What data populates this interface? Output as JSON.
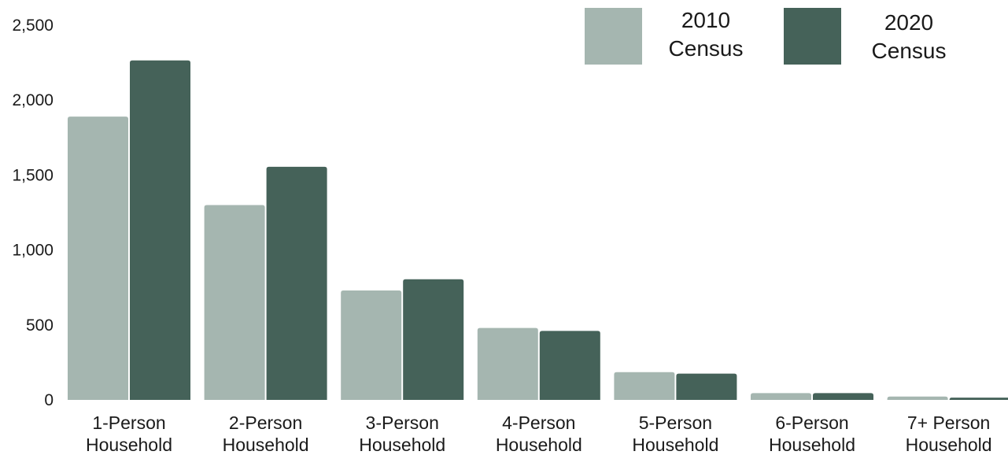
{
  "chart_data": {
    "type": "bar",
    "title": "",
    "xlabel": "",
    "ylabel": "",
    "ylim": [
      0,
      2500
    ],
    "yticks": [
      0,
      500,
      1000,
      1500,
      2000,
      2500
    ],
    "ytick_labels": [
      "0",
      "500",
      "1,000",
      "1,500",
      "2,000",
      "2,500"
    ],
    "grid": false,
    "legend_position": "top-right",
    "categories": [
      [
        "1-Person",
        "Household"
      ],
      [
        "2-Person",
        "Household"
      ],
      [
        "3-Person",
        "Household"
      ],
      [
        "4-Person",
        "Household"
      ],
      [
        "5-Person",
        "Household"
      ],
      [
        "6-Person",
        "Household"
      ],
      [
        "7+ Person",
        "Household"
      ]
    ],
    "series": [
      {
        "name": [
          "2010",
          "Census"
        ],
        "color": "#a5b6b0",
        "values": [
          1890,
          1300,
          730,
          480,
          185,
          45,
          22
        ]
      },
      {
        "name": [
          "2020",
          "Census"
        ],
        "color": "#456259",
        "values": [
          2265,
          1555,
          805,
          460,
          175,
          45,
          15
        ]
      }
    ]
  }
}
